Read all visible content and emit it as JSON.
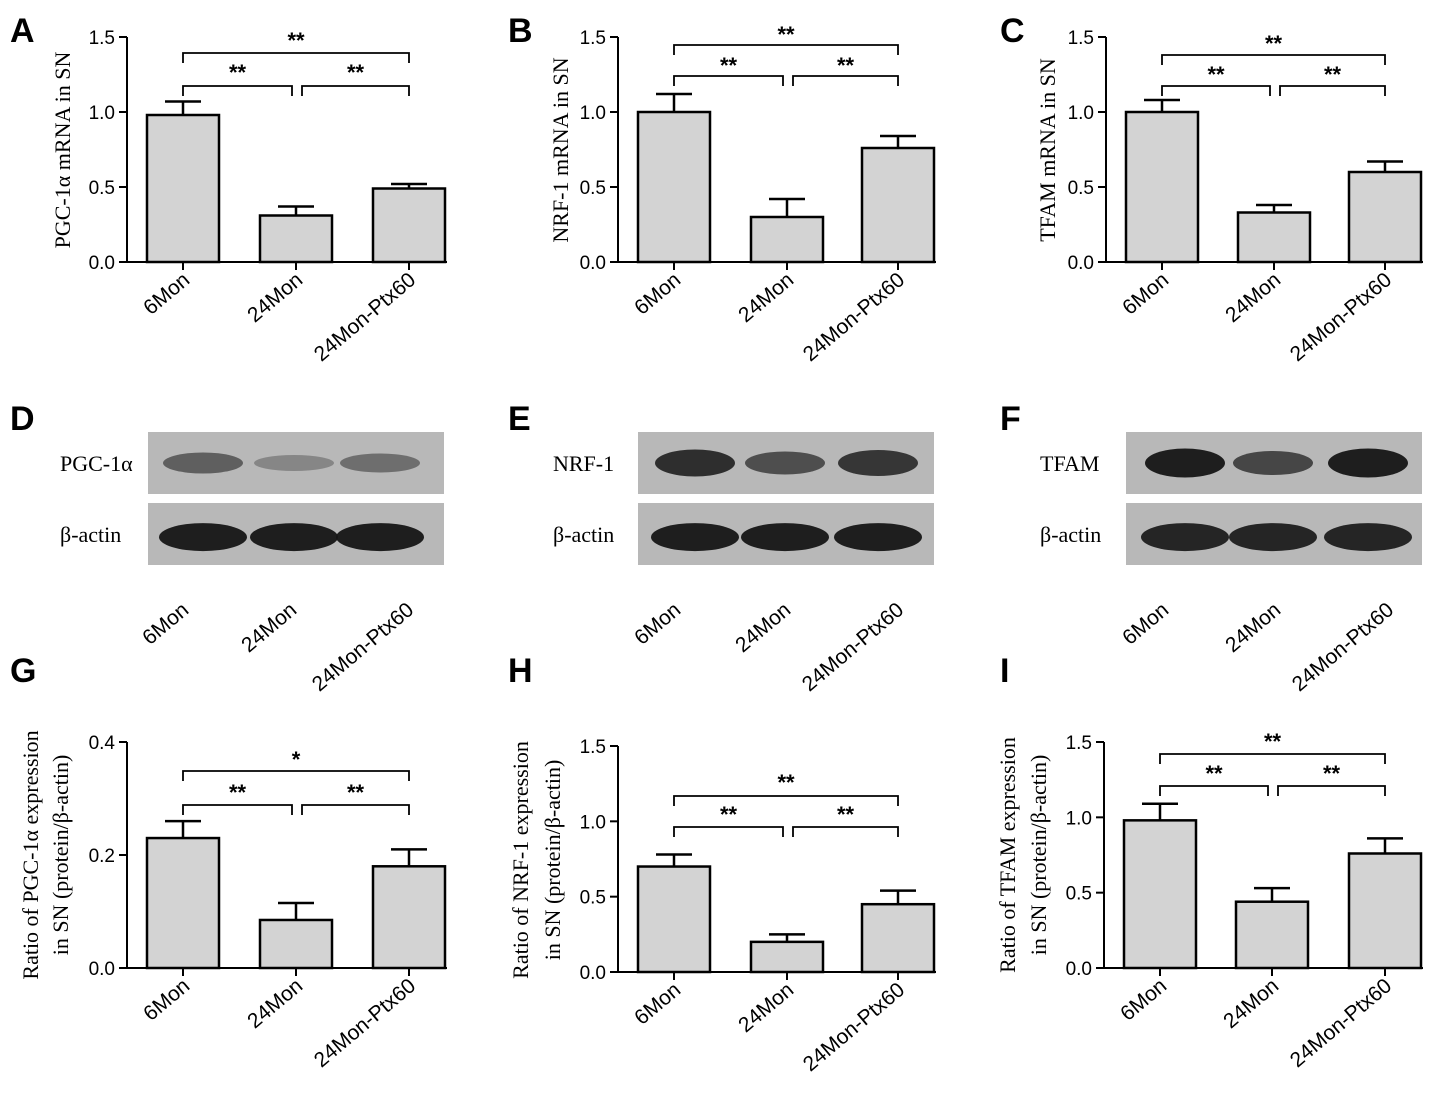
{
  "panel_letters": [
    "A",
    "B",
    "C",
    "D",
    "E",
    "F",
    "G",
    "H",
    "I"
  ],
  "chart_data": [
    {
      "panel": "A",
      "type": "bar",
      "categories": [
        "6Mon",
        "24Mon",
        "24Mon-Ptx60"
      ],
      "values": [
        0.98,
        0.31,
        0.49
      ],
      "errors": [
        0.09,
        0.06,
        0.03
      ],
      "ylabel": "PGC-1α mRNA in SN",
      "ylim": [
        0,
        1.5
      ],
      "yticks": [
        "0.0",
        "0.5",
        "1.0",
        "1.5"
      ],
      "ytick_values": [
        0,
        0.5,
        1.0,
        1.5
      ],
      "significance": [
        {
          "from": 0,
          "to": 2,
          "label": "**"
        },
        {
          "from": 0,
          "to": 1,
          "label": "**"
        },
        {
          "from": 1,
          "to": 2,
          "label": "**"
        }
      ]
    },
    {
      "panel": "B",
      "type": "bar",
      "categories": [
        "6Mon",
        "24Mon",
        "24Mon-Ptx60"
      ],
      "values": [
        1.0,
        0.3,
        0.76
      ],
      "errors": [
        0.12,
        0.12,
        0.08
      ],
      "ylabel": "NRF-1 mRNA in SN",
      "ylim": [
        0,
        1.5
      ],
      "yticks": [
        "0.0",
        "0.5",
        "1.0",
        "1.5"
      ],
      "ytick_values": [
        0,
        0.5,
        1.0,
        1.5
      ],
      "significance": [
        {
          "from": 0,
          "to": 2,
          "label": "**"
        },
        {
          "from": 0,
          "to": 1,
          "label": "**"
        },
        {
          "from": 1,
          "to": 2,
          "label": "**"
        }
      ]
    },
    {
      "panel": "C",
      "type": "bar",
      "categories": [
        "6Mon",
        "24Mon",
        "24Mon-Ptx60"
      ],
      "values": [
        1.0,
        0.33,
        0.6
      ],
      "errors": [
        0.08,
        0.05,
        0.07
      ],
      "ylabel": "TFAM mRNA in SN",
      "ylim": [
        0,
        1.5
      ],
      "yticks": [
        "0.0",
        "0.5",
        "1.0",
        "1.5"
      ],
      "ytick_values": [
        0,
        0.5,
        1.0,
        1.5
      ],
      "significance": [
        {
          "from": 0,
          "to": 2,
          "label": "**"
        },
        {
          "from": 0,
          "to": 1,
          "label": "**"
        },
        {
          "from": 1,
          "to": 2,
          "label": "**"
        }
      ]
    },
    {
      "panel": "G",
      "type": "bar",
      "categories": [
        "6Mon",
        "24Mon",
        "24Mon-Ptx60"
      ],
      "values": [
        0.23,
        0.085,
        0.18
      ],
      "errors": [
        0.03,
        0.03,
        0.03
      ],
      "ylabel": [
        "Ratio of PGC-1α expression",
        "in SN (protein/β-actin)"
      ],
      "ylim": [
        0,
        0.4
      ],
      "yticks": [
        "0.0",
        "0.2",
        "0.4"
      ],
      "ytick_values": [
        0,
        0.2,
        0.4
      ],
      "significance": [
        {
          "from": 0,
          "to": 2,
          "label": "*"
        },
        {
          "from": 0,
          "to": 1,
          "label": "**"
        },
        {
          "from": 1,
          "to": 2,
          "label": "**"
        }
      ]
    },
    {
      "panel": "H",
      "type": "bar",
      "categories": [
        "6Mon",
        "24Mon",
        "24Mon-Ptx60"
      ],
      "values": [
        0.7,
        0.2,
        0.45
      ],
      "errors": [
        0.08,
        0.05,
        0.09
      ],
      "ylabel": [
        "Ratio of NRF-1 expression",
        "in SN (protein/β-actin)"
      ],
      "ylim": [
        0,
        1.5
      ],
      "yticks": [
        "0.0",
        "0.5",
        "1.0",
        "1.5"
      ],
      "ytick_values": [
        0,
        0.5,
        1.0,
        1.5
      ],
      "significance": [
        {
          "from": 0,
          "to": 2,
          "label": "**"
        },
        {
          "from": 0,
          "to": 1,
          "label": "**"
        },
        {
          "from": 1,
          "to": 2,
          "label": "**"
        }
      ]
    },
    {
      "panel": "I",
      "type": "bar",
      "categories": [
        "6Mon",
        "24Mon",
        "24Mon-Ptx60"
      ],
      "values": [
        0.98,
        0.44,
        0.76
      ],
      "errors": [
        0.11,
        0.09,
        0.1
      ],
      "ylabel": [
        "Ratio of TFAM expression",
        "in SN (protein/β-actin)"
      ],
      "ylim": [
        0,
        1.5
      ],
      "yticks": [
        "0.0",
        "0.5",
        "1.0",
        "1.5"
      ],
      "ytick_values": [
        0,
        0.5,
        1.0,
        1.5
      ],
      "significance": [
        {
          "from": 0,
          "to": 2,
          "label": "**"
        },
        {
          "from": 0,
          "to": 1,
          "label": "**"
        },
        {
          "from": 1,
          "to": 2,
          "label": "**"
        }
      ]
    }
  ],
  "blots": [
    {
      "panel": "D",
      "target": "PGC-1α",
      "loading": "β-actin",
      "categories": [
        "6Mon",
        "24Mon",
        "24Mon-Ptx60"
      ],
      "target_intensity": [
        0.55,
        0.3,
        0.45
      ],
      "loading_intensity": [
        0.95,
        0.95,
        0.95
      ]
    },
    {
      "panel": "E",
      "target": "NRF-1",
      "loading": "β-actin",
      "categories": [
        "6Mon",
        "24Mon",
        "24Mon-Ptx60"
      ],
      "target_intensity": [
        0.85,
        0.65,
        0.8
      ],
      "loading_intensity": [
        0.95,
        0.95,
        0.95
      ]
    },
    {
      "panel": "F",
      "target": "TFAM",
      "loading": "β-actin",
      "categories": [
        "6Mon",
        "24Mon",
        "24Mon-Ptx60"
      ],
      "target_intensity": [
        0.95,
        0.7,
        0.95
      ],
      "loading_intensity": [
        0.9,
        0.9,
        0.9
      ]
    }
  ],
  "colors": {
    "bar_fill": "#d3d3d3",
    "stroke": "#000000",
    "blot_bg": "#b8b8b8",
    "band": "#151515"
  }
}
